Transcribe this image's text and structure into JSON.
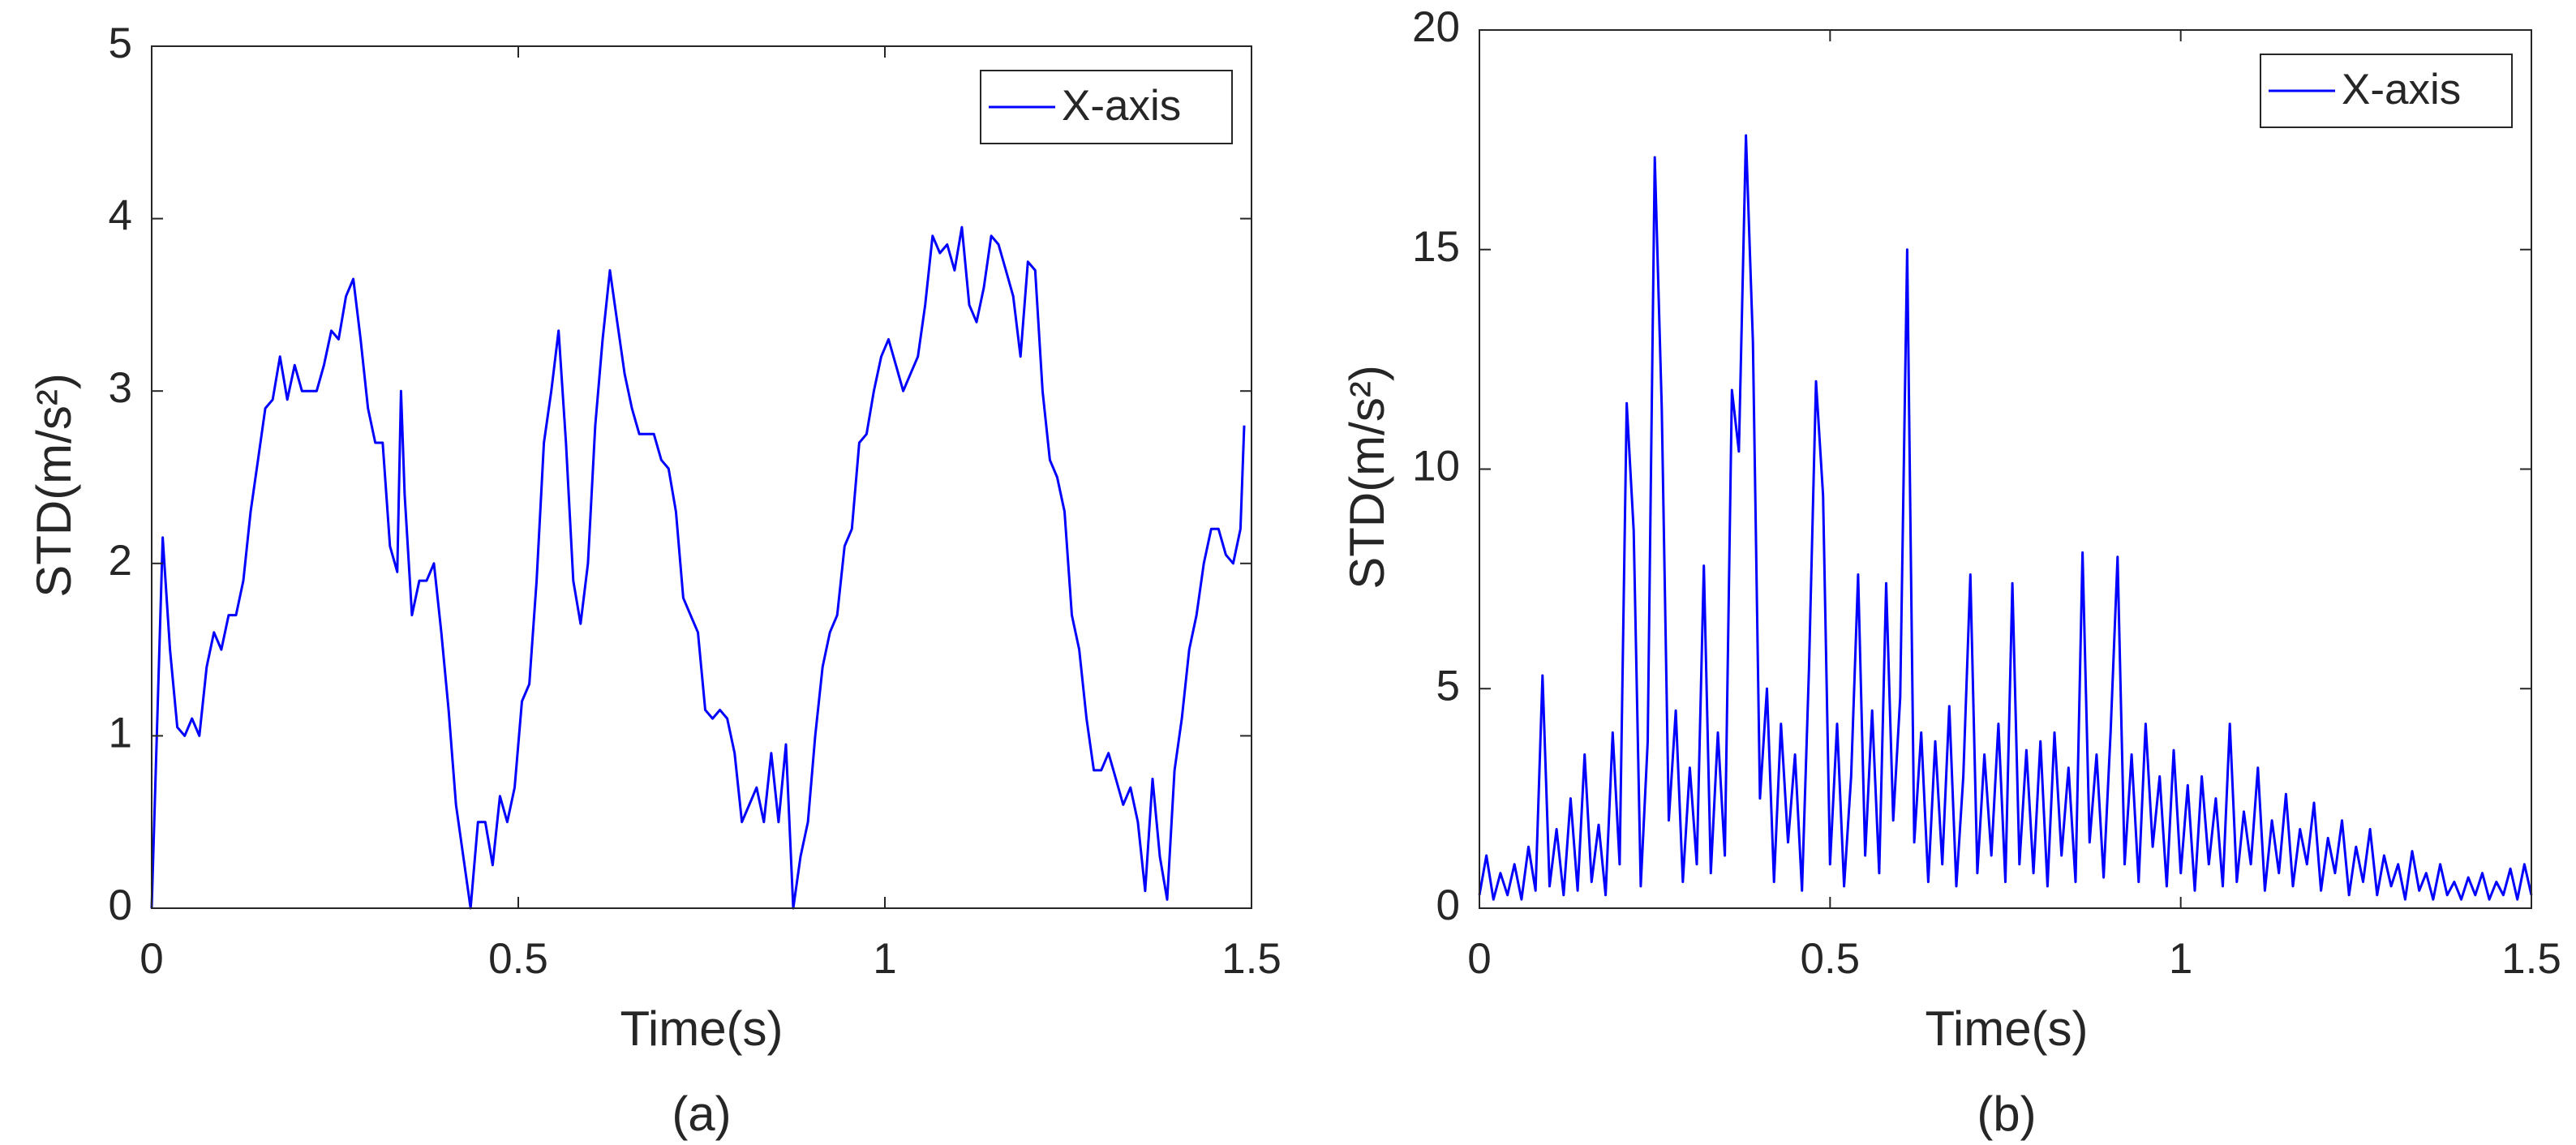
{
  "chart_data": [
    {
      "type": "line",
      "caption": "(a)",
      "xlabel": "Time(s)",
      "ylabel": "STD(m/s²)",
      "xlim": [
        0,
        1.5
      ],
      "xticks": [
        0,
        0.5,
        1,
        1.5
      ],
      "ylim": [
        0,
        5
      ],
      "yticks": [
        0,
        1,
        2,
        3,
        4,
        5
      ],
      "legend": "upper right",
      "series": [
        {
          "name": "X-axis",
          "color": "#0000ff",
          "x": [
            0,
            0.015,
            0.025,
            0.035,
            0.045,
            0.055,
            0.065,
            0.075,
            0.085,
            0.095,
            0.105,
            0.115,
            0.125,
            0.135,
            0.145,
            0.155,
            0.165,
            0.175,
            0.185,
            0.195,
            0.205,
            0.215,
            0.225,
            0.235,
            0.245,
            0.255,
            0.265,
            0.275,
            0.285,
            0.295,
            0.305,
            0.315,
            0.325,
            0.335,
            0.34,
            0.345,
            0.355,
            0.365,
            0.375,
            0.385,
            0.395,
            0.405,
            0.415,
            0.425,
            0.435,
            0.445,
            0.455,
            0.465,
            0.475,
            0.485,
            0.495,
            0.505,
            0.515,
            0.525,
            0.535,
            0.545,
            0.555,
            0.565,
            0.575,
            0.585,
            0.595,
            0.605,
            0.615,
            0.625,
            0.635,
            0.645,
            0.655,
            0.665,
            0.675,
            0.685,
            0.695,
            0.705,
            0.715,
            0.725,
            0.735,
            0.745,
            0.755,
            0.765,
            0.775,
            0.785,
            0.795,
            0.805,
            0.815,
            0.825,
            0.835,
            0.845,
            0.855,
            0.865,
            0.875,
            0.885,
            0.895,
            0.905,
            0.915,
            0.925,
            0.935,
            0.945,
            0.955,
            0.965,
            0.975,
            0.985,
            0.995,
            1.005,
            1.015,
            1.025,
            1.035,
            1.045,
            1.055,
            1.065,
            1.075,
            1.085,
            1.095,
            1.105,
            1.115,
            1.125,
            1.135,
            1.145,
            1.155,
            1.165,
            1.175,
            1.185,
            1.195,
            1.205,
            1.215,
            1.225,
            1.235,
            1.245,
            1.255,
            1.265,
            1.275,
            1.285,
            1.295,
            1.305,
            1.315,
            1.325,
            1.335,
            1.345,
            1.355,
            1.365,
            1.375,
            1.385,
            1.395,
            1.405,
            1.415,
            1.425,
            1.435,
            1.445,
            1.455,
            1.465,
            1.475,
            1.485,
            1.49
          ],
          "values": [
            0,
            2.15,
            1.5,
            1.05,
            1.0,
            1.1,
            1.0,
            1.4,
            1.6,
            1.5,
            1.7,
            1.7,
            1.9,
            2.3,
            2.6,
            2.9,
            2.95,
            3.2,
            2.95,
            3.15,
            3.0,
            3.0,
            3.0,
            3.15,
            3.35,
            3.3,
            3.55,
            3.65,
            3.3,
            2.9,
            2.7,
            2.7,
            2.1,
            1.95,
            3.0,
            2.4,
            1.7,
            1.9,
            1.9,
            2.0,
            1.6,
            1.15,
            0.6,
            0.3,
            0.0,
            0.5,
            0.5,
            0.25,
            0.65,
            0.5,
            0.7,
            1.2,
            1.3,
            1.9,
            2.7,
            3.0,
            3.35,
            2.7,
            1.9,
            1.65,
            2.0,
            2.8,
            3.3,
            3.7,
            3.4,
            3.1,
            2.9,
            2.75,
            2.75,
            2.75,
            2.6,
            2.55,
            2.3,
            1.8,
            1.7,
            1.6,
            1.15,
            1.1,
            1.15,
            1.1,
            0.9,
            0.5,
            0.6,
            0.7,
            0.5,
            0.9,
            0.5,
            0.95,
            0.0,
            0.3,
            0.5,
            1.0,
            1.4,
            1.6,
            1.7,
            2.1,
            2.2,
            2.7,
            2.75,
            3.0,
            3.2,
            3.3,
            3.15,
            3.0,
            3.1,
            3.2,
            3.5,
            3.9,
            3.8,
            3.85,
            3.7,
            3.95,
            3.5,
            3.4,
            3.6,
            3.9,
            3.85,
            3.7,
            3.55,
            3.2,
            3.75,
            3.7,
            3.0,
            2.6,
            2.5,
            2.3,
            1.7,
            1.5,
            1.1,
            0.8,
            0.8,
            0.9,
            0.75,
            0.6,
            0.7,
            0.5,
            0.1,
            0.75,
            0.3,
            0.05,
            0.8,
            1.1,
            1.5,
            1.7,
            2.0,
            2.2,
            2.2,
            2.05,
            2.0,
            2.2,
            2.8
          ]
        }
      ]
    },
    {
      "type": "line",
      "caption": "(b)",
      "xlabel": "Time(s)",
      "ylabel": "STD(m/s²)",
      "xlim": [
        0,
        1.5
      ],
      "xticks": [
        0,
        0.5,
        1,
        1.5
      ],
      "ylim": [
        0,
        20
      ],
      "yticks": [
        0,
        5,
        10,
        15,
        20
      ],
      "legend": "upper right",
      "series": [
        {
          "name": "X-axis",
          "color": "#0000ff",
          "x": [
            0,
            0.01,
            0.02,
            0.03,
            0.04,
            0.05,
            0.06,
            0.07,
            0.08,
            0.09,
            0.1,
            0.11,
            0.12,
            0.13,
            0.14,
            0.15,
            0.16,
            0.17,
            0.18,
            0.19,
            0.2,
            0.21,
            0.22,
            0.23,
            0.24,
            0.25,
            0.26,
            0.27,
            0.28,
            0.29,
            0.3,
            0.31,
            0.32,
            0.33,
            0.34,
            0.35,
            0.36,
            0.37,
            0.38,
            0.39,
            0.4,
            0.41,
            0.42,
            0.43,
            0.44,
            0.45,
            0.46,
            0.47,
            0.48,
            0.49,
            0.5,
            0.51,
            0.52,
            0.53,
            0.54,
            0.55,
            0.56,
            0.57,
            0.58,
            0.59,
            0.6,
            0.61,
            0.62,
            0.63,
            0.64,
            0.65,
            0.66,
            0.67,
            0.68,
            0.69,
            0.7,
            0.71,
            0.72,
            0.73,
            0.74,
            0.75,
            0.76,
            0.77,
            0.78,
            0.79,
            0.8,
            0.81,
            0.82,
            0.83,
            0.84,
            0.85,
            0.86,
            0.87,
            0.88,
            0.89,
            0.9,
            0.91,
            0.92,
            0.93,
            0.94,
            0.95,
            0.96,
            0.97,
            0.98,
            0.99,
            1.0,
            1.01,
            1.02,
            1.03,
            1.04,
            1.05,
            1.06,
            1.07,
            1.08,
            1.09,
            1.1,
            1.11,
            1.12,
            1.13,
            1.14,
            1.15,
            1.16,
            1.17,
            1.18,
            1.19,
            1.2,
            1.21,
            1.22,
            1.23,
            1.24,
            1.25,
            1.26,
            1.27,
            1.28,
            1.29,
            1.3,
            1.31,
            1.32,
            1.33,
            1.34,
            1.35,
            1.36,
            1.37,
            1.38,
            1.39,
            1.4,
            1.41,
            1.42,
            1.43,
            1.44,
            1.45,
            1.46,
            1.47,
            1.48,
            1.49,
            1.5
          ],
          "values": [
            0.3,
            1.2,
            0.2,
            0.8,
            0.3,
            1.0,
            0.2,
            1.4,
            0.4,
            5.3,
            0.5,
            1.8,
            0.3,
            2.5,
            0.4,
            3.5,
            0.6,
            1.9,
            0.3,
            4.0,
            1.0,
            11.5,
            8.6,
            0.5,
            3.8,
            17.1,
            11.4,
            2.0,
            4.5,
            0.6,
            3.2,
            1.0,
            7.8,
            0.8,
            4.0,
            1.2,
            11.8,
            10.4,
            17.6,
            12.9,
            2.5,
            5.0,
            0.6,
            4.2,
            1.5,
            3.5,
            0.4,
            5.5,
            12.0,
            9.4,
            1.0,
            4.2,
            0.5,
            3.0,
            7.6,
            1.2,
            4.5,
            0.8,
            7.4,
            2.0,
            4.8,
            15.0,
            1.5,
            4.0,
            0.6,
            3.8,
            1.0,
            4.6,
            0.5,
            3.0,
            7.6,
            0.8,
            3.5,
            1.2,
            4.2,
            0.6,
            7.4,
            1.0,
            3.6,
            0.8,
            3.8,
            0.5,
            4.0,
            1.2,
            3.2,
            0.6,
            8.1,
            1.5,
            3.5,
            0.7,
            4.0,
            8.0,
            1.0,
            3.5,
            0.6,
            4.2,
            1.4,
            3.0,
            0.5,
            3.6,
            0.8,
            2.8,
            0.4,
            3.0,
            1.0,
            2.5,
            0.5,
            4.2,
            0.6,
            2.2,
            1.0,
            3.2,
            0.4,
            2.0,
            0.8,
            2.6,
            0.5,
            1.8,
            1.0,
            2.4,
            0.4,
            1.6,
            0.8,
            2.0,
            0.3,
            1.4,
            0.6,
            1.8,
            0.3,
            1.2,
            0.5,
            1.0,
            0.2,
            1.3,
            0.4,
            0.8,
            0.2,
            1.0,
            0.3,
            0.6,
            0.2,
            0.7,
            0.3,
            0.8,
            0.2,
            0.6,
            0.3,
            0.9,
            0.2,
            1.0,
            0.3
          ]
        }
      ]
    }
  ]
}
